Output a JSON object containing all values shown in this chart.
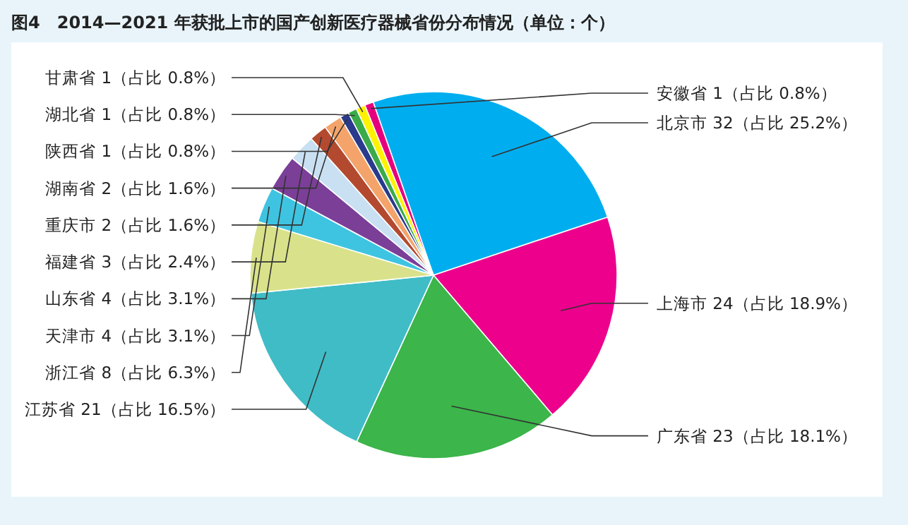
{
  "chart_data": {
    "type": "pie",
    "title": "图4　2014—2021 年获批上市的国产创新医疗器械省份分布情况（单位：个）",
    "categories": [
      "安徽省",
      "北京市",
      "上海市",
      "广东省",
      "江苏省",
      "浙江省",
      "天津市",
      "山东省",
      "福建省",
      "重庆市",
      "湖南省",
      "陕西省",
      "湖北省",
      "甘肃省"
    ],
    "values": [
      1,
      32,
      24,
      23,
      21,
      8,
      4,
      4,
      3,
      2,
      2,
      1,
      1,
      1
    ],
    "value_labels": [
      "1（占比 0.8%）",
      "32（占比 25.2%）",
      "24（占比 18.9%）",
      "23（占比 18.1%）",
      "21（占比 16.5%）",
      "8（占比 6.3%）",
      "4（占比 3.1%）",
      "4（占比 3.1%）",
      "3（占比 2.4%）",
      "2（占比 1.6%）",
      "2（占比 1.6%）",
      "1（占比 0.8%）",
      "1（占比 0.8%）",
      "1（占比 0.8%）"
    ],
    "colors": [
      "#e6007e",
      "#00aeef",
      "#ec008c",
      "#3cb54a",
      "#40bcc6",
      "#d9e28a",
      "#3ec4e0",
      "#7b3f98",
      "#c8e0f2",
      "#b34a30",
      "#f4a46a",
      "#2a3a8c",
      "#3aab49",
      "#fff200"
    ],
    "legend": false
  }
}
